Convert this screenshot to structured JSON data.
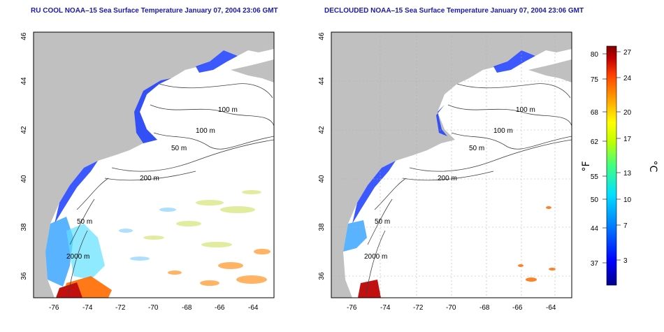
{
  "panels": [
    {
      "title": "RU COOL NOAA–15 Sea Surface Temperature January 07, 2004 23:06 GMT",
      "x_ticks": [
        "-76",
        "-74",
        "-72",
        "-70",
        "-68",
        "-66",
        "-64"
      ],
      "y_ticks": [
        "46",
        "44",
        "42",
        "40",
        "38",
        "36"
      ],
      "contour_labels": [
        "100 m",
        "100 m",
        "50 m",
        "200 m",
        "50 m",
        "2000 m"
      ]
    },
    {
      "title": "DECLOUDED NOAA–15 Sea Surface Temperature January 07, 2004 23:06 GMT",
      "x_ticks": [
        "-76",
        "-74",
        "-72",
        "-70",
        "-68",
        "-66",
        "-64"
      ],
      "y_ticks": [
        "46",
        "44",
        "42",
        "40",
        "38",
        "36"
      ],
      "contour_labels": [
        "100 m",
        "100 m",
        "50 m",
        "200 m",
        "50 m",
        "2000 m"
      ]
    }
  ],
  "colorbar": {
    "fahrenheit_ticks": [
      "80",
      "75",
      "68",
      "62",
      "55",
      "50",
      "44",
      "37"
    ],
    "celsius_ticks": [
      "27",
      "24",
      "20",
      "17",
      "13",
      "10",
      "7",
      "3"
    ],
    "fahrenheit_unit": "°F",
    "celsius_unit": "°C",
    "scale_colors": [
      "#00008b",
      "#0000ff",
      "#0080ff",
      "#00e0ff",
      "#40ff80",
      "#c0ff00",
      "#ffff00",
      "#ffa000",
      "#ff4000",
      "#c00000",
      "#800000"
    ]
  },
  "colors": {
    "land": "#c0c0c0",
    "ocean": "#ffffff",
    "contour": "#404040",
    "title": "#1a1aa8"
  }
}
